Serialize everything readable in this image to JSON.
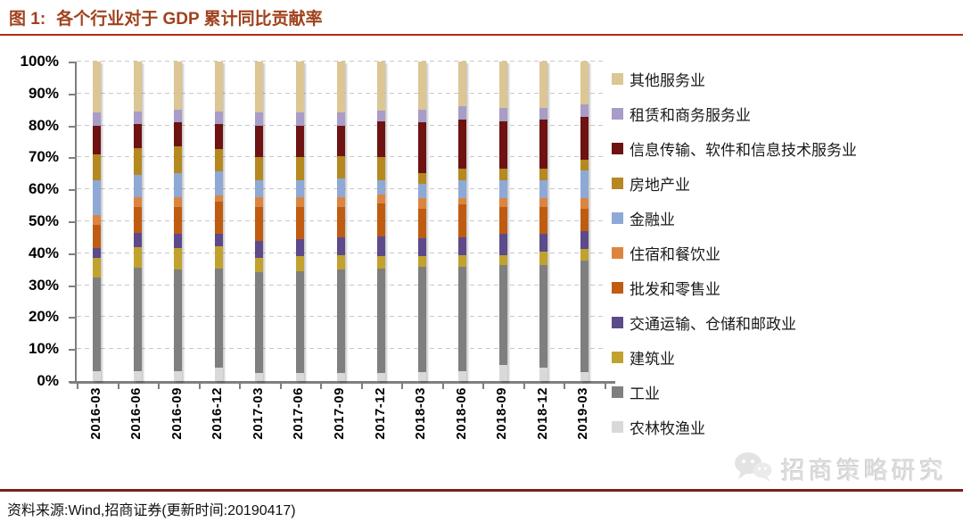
{
  "header": {
    "figure_label": "图 1:",
    "title": "各个行业对于 GDP 累计同比贡献率"
  },
  "chart_data": {
    "type": "bar",
    "stacked": true,
    "title": "各个行业对于 GDP 累计同比贡献率",
    "unit": "%",
    "ylim": [
      0,
      100
    ],
    "y_tick_step": 10,
    "y_tick_labels": [
      "0%",
      "10%",
      "20%",
      "30%",
      "40%",
      "50%",
      "60%",
      "70%",
      "80%",
      "90%",
      "100%"
    ],
    "grid": "dashed horizontal gridlines every 10%",
    "legend_position": "right, top-to-bottom reverse of stack order",
    "categories": [
      "2016-03",
      "2016-06",
      "2016-09",
      "2016-12",
      "2017-03",
      "2017-06",
      "2017-09",
      "2017-12",
      "2018-03",
      "2018-06",
      "2018-09",
      "2018-12",
      "2019-03"
    ],
    "series_note": "stack order bottom-to-top; values are percent contribution to cumulative GDP yoy growth",
    "series": [
      {
        "name": "农林牧渔业",
        "color": "#D9D9D9",
        "values": [
          3.0,
          3.0,
          3.0,
          4.2,
          2.5,
          2.5,
          2.5,
          2.5,
          2.8,
          3.1,
          5.0,
          4.2,
          2.8
        ]
      },
      {
        "name": "工业",
        "color": "#7F7F7F",
        "values": [
          29.5,
          32.5,
          32.0,
          31.0,
          31.5,
          32.0,
          32.5,
          32.7,
          33.0,
          32.7,
          31.3,
          32.1,
          34.9
        ]
      },
      {
        "name": "建筑业",
        "color": "#C2A22E",
        "values": [
          6.0,
          6.5,
          6.5,
          7.0,
          4.5,
          4.5,
          4.5,
          4.0,
          3.3,
          3.6,
          3.1,
          4.2,
          3.6
        ]
      },
      {
        "name": "交通运输、仓储和邮政业",
        "color": "#5C4A8A",
        "values": [
          3.0,
          4.5,
          4.5,
          3.9,
          5.5,
          5.5,
          5.5,
          6.0,
          5.6,
          5.6,
          6.7,
          5.6,
          5.6
        ]
      },
      {
        "name": "批发和零售业",
        "color": "#C05C11",
        "values": [
          7.5,
          8.0,
          8.5,
          10.0,
          10.5,
          10.0,
          9.5,
          10.3,
          9.2,
          10.3,
          8.4,
          8.4,
          7.0
        ]
      },
      {
        "name": "住宿和餐饮业",
        "color": "#DC8540",
        "values": [
          3.0,
          3.0,
          3.0,
          2.0,
          3.0,
          3.0,
          3.0,
          2.8,
          3.4,
          2.0,
          2.8,
          2.8,
          3.4
        ]
      },
      {
        "name": "金融业",
        "color": "#8FA9D6",
        "values": [
          11.0,
          7.0,
          7.5,
          7.5,
          5.5,
          5.5,
          6.0,
          4.7,
          4.4,
          5.5,
          5.5,
          5.5,
          8.6
        ]
      },
      {
        "name": "房地产业",
        "color": "#B5891F",
        "values": [
          8.0,
          8.5,
          8.5,
          7.0,
          7.0,
          7.0,
          7.0,
          7.0,
          3.4,
          3.7,
          3.7,
          3.7,
          3.4
        ]
      },
      {
        "name": "信息传输、软件和信息技术服务业",
        "color": "#6E1212",
        "values": [
          9.0,
          7.5,
          7.5,
          8.0,
          10.0,
          10.0,
          9.5,
          11.2,
          15.9,
          15.3,
          14.8,
          15.3,
          13.4
        ]
      },
      {
        "name": "租赁和商务服务业",
        "color": "#A89CC8",
        "values": [
          4.0,
          4.0,
          4.0,
          3.8,
          4.0,
          4.0,
          4.0,
          3.6,
          3.9,
          4.2,
          4.2,
          3.7,
          3.9
        ]
      },
      {
        "name": "其他服务业",
        "color": "#DBC694",
        "values": [
          16.0,
          15.5,
          15.0,
          15.6,
          16.0,
          16.0,
          16.0,
          15.2,
          15.1,
          14.0,
          14.5,
          14.5,
          13.4
        ]
      }
    ]
  },
  "footer": {
    "source": "资料来源:Wind,招商证券(更新时间:20190417)"
  },
  "watermark": {
    "text": "招商策略研究"
  },
  "theme": {
    "title_color": "#A0421E",
    "rule_top_color": "#AF2B1A",
    "rule_bottom_color": "#7E1F14",
    "axis_color": "#7F7F7F",
    "grid_color": "#C9C9C9"
  }
}
